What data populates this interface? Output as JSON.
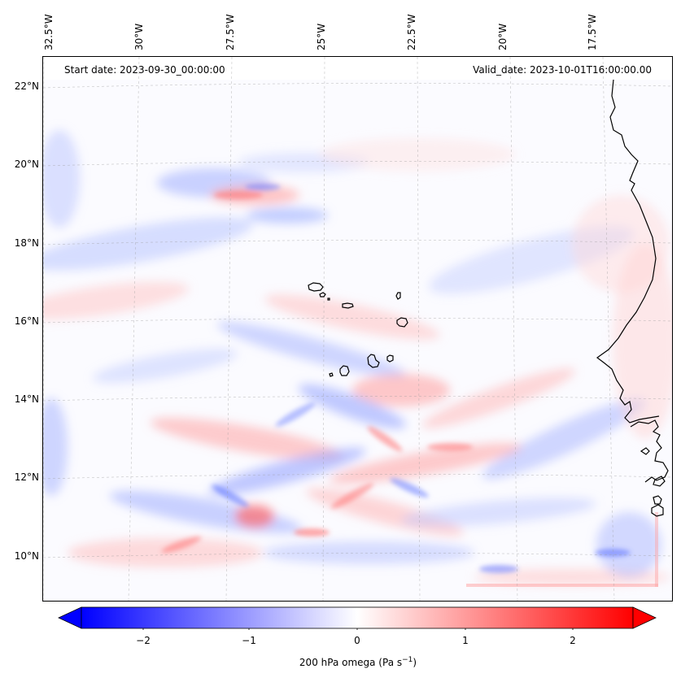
{
  "map": {
    "start_date": "Start date: 2023-09-30_00:00:00",
    "valid_date": "Valid_date: 2023-10-01T16:00:00.00",
    "lon_labels": [
      "32.5°W",
      "30°W",
      "27.5°W",
      "25°W",
      "22.5°W",
      "20°W",
      "17.5°W"
    ],
    "lat_labels": [
      "22°N",
      "20°N",
      "18°N",
      "16°N",
      "14°N",
      "12°N",
      "10°N"
    ],
    "colorbar": {
      "ticks": [
        "−2",
        "−1",
        "0",
        "1",
        "2"
      ],
      "label": "200 hPa omega (Pa s",
      "label_sup": "−1",
      "label_end": ")",
      "min": -2.5,
      "max": 2.5,
      "low_color": "#0000ff",
      "high_color": "#ff0000"
    }
  }
}
